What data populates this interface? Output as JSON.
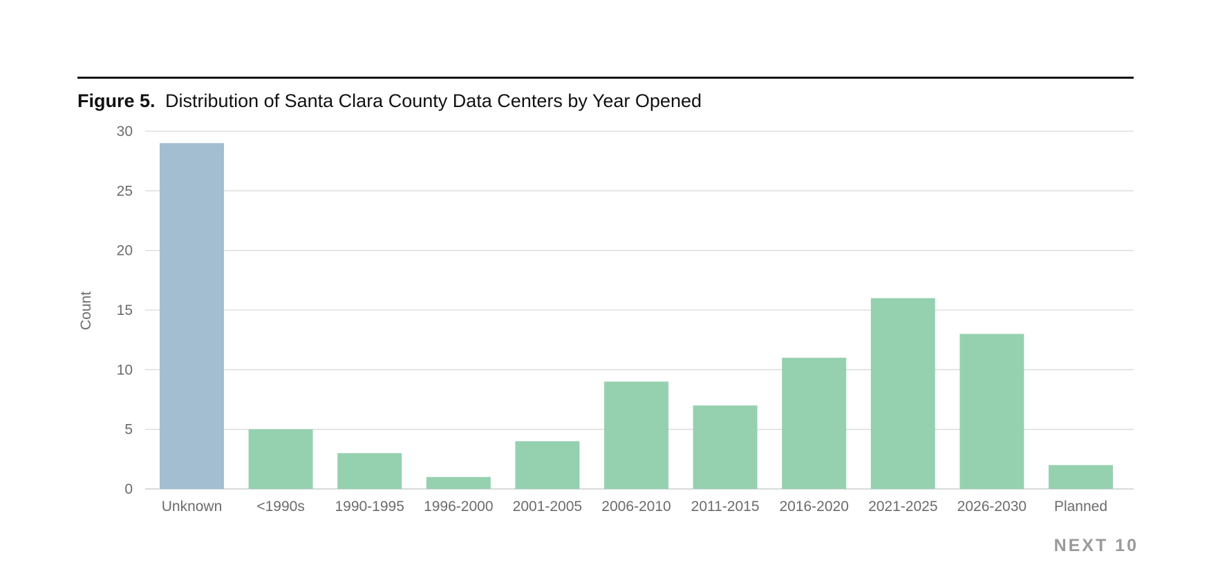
{
  "figure": {
    "label": "Figure 5.",
    "title": "Distribution of Santa Clara County Data Centers by Year Opened"
  },
  "logo": {
    "text": "NEXT 10"
  },
  "colors": {
    "unknown_bar": "#a3bed1",
    "bar": "#95d1af",
    "grid": "#d7dadd",
    "rule": "#111111"
  },
  "chart_data": {
    "type": "bar",
    "title": "Distribution of Santa Clara County Data Centers by Year Opened",
    "xlabel": "",
    "ylabel": "Count",
    "ylim": [
      0,
      30
    ],
    "yticks": [
      0,
      5,
      10,
      15,
      20,
      25,
      30
    ],
    "grid": true,
    "categories": [
      "Unknown",
      "<1990s",
      "1990-1995",
      "1996-2000",
      "2001-2005",
      "2006-2010",
      "2011-2015",
      "2016-2020",
      "2021-2025",
      "2026-2030",
      "Planned"
    ],
    "values": [
      29,
      5,
      3,
      1,
      4,
      9,
      7,
      11,
      16,
      13,
      2
    ]
  }
}
